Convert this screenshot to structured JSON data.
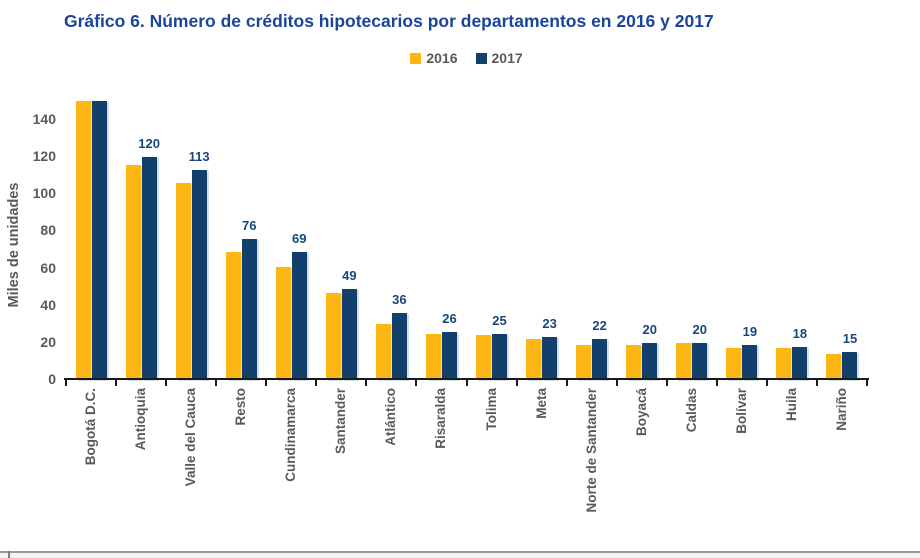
{
  "title": {
    "text": "Gráfico 6. Número de créditos hipotecarios por departamentos en 2016 y 2017"
  },
  "legend": {
    "items": [
      {
        "label": "2016",
        "color": "#FDB714"
      },
      {
        "label": "2017",
        "color": "#123F6C"
      }
    ]
  },
  "theme": {
    "title_color": "#1A459B",
    "axis_text_color": "#595959",
    "value_label_color": "#17477D",
    "axis_line_color": "#1A1A1A",
    "series_2016_color": "#FDB714",
    "series_2017_color": "#123F6C",
    "footer_line_color": "#9B9B9B",
    "footer_band_color": "#F4F2F1"
  },
  "chart_data": {
    "type": "bar",
    "title": "Gráfico 6. Número de créditos hipotecarios por departamentos en 2016 y 2017",
    "xlabel": "",
    "ylabel": "Miles de unidades",
    "ylim": [
      0,
      150
    ],
    "yticks": [
      0,
      20,
      40,
      60,
      80,
      100,
      120,
      140
    ],
    "grid": false,
    "legend_position": "top-center",
    "categories": [
      "Bogotá D.C.",
      "Antioquia",
      "Valle del Cauca",
      "Resto",
      "Cundinamarca",
      "Santander",
      "Atlántico",
      "Risaralda",
      "Tolima",
      "Meta",
      "Norte de Santander",
      "Boyacá",
      "Caldas",
      "Bolívar",
      "Huila",
      "Nariño"
    ],
    "series": [
      {
        "name": "2016",
        "color": "#FDB714",
        "values": [
          150,
          116,
          106,
          69,
          61,
          47,
          30,
          25,
          24,
          22,
          19,
          19,
          20,
          17,
          17,
          14
        ],
        "labels": [
          "",
          "",
          "",
          "",
          "",
          "",
          "",
          "",
          "",
          "",
          "",
          "",
          "",
          "",
          "",
          ""
        ]
      },
      {
        "name": "2017",
        "color": "#123F6C",
        "values": [
          150,
          120,
          113,
          76,
          69,
          49,
          36,
          26,
          25,
          23,
          22,
          20,
          20,
          19,
          18,
          15
        ],
        "labels": [
          "",
          "120",
          "113",
          "76",
          "69",
          "49",
          "36",
          "26",
          "25",
          "23",
          "22",
          "20",
          "20",
          "19",
          "18",
          "15"
        ]
      }
    ],
    "notes": "Bogotá D.C. bars exceed the visible y-axis range and are clipped at the top of the plot area; no value label is shown for Bogotá D.C. 2016 bar heights are estimated from pixels (unlabeled)."
  }
}
